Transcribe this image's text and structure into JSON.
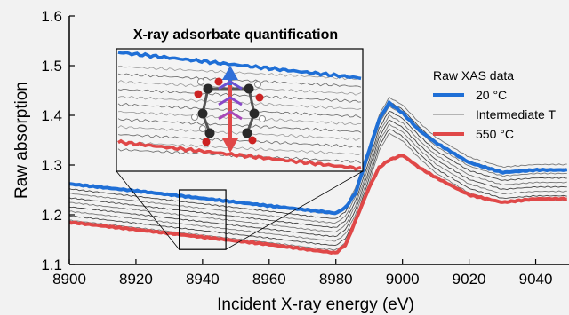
{
  "chart_data": {
    "type": "line",
    "xlabel": "Incident X-ray energy (eV)",
    "ylabel": "Raw absorption",
    "xlim": [
      8900,
      9050
    ],
    "ylim": [
      1.1,
      1.6
    ],
    "x_ticks": [
      8900,
      8920,
      8940,
      8960,
      8980,
      9000,
      9020,
      9040
    ],
    "y_ticks": [
      1.1,
      1.2,
      1.3,
      1.4,
      1.5,
      1.6
    ],
    "legend": {
      "title": "Raw XAS data",
      "placement": "right",
      "entries": [
        "20 °C",
        "Intermediate T",
        "550 °C"
      ]
    },
    "series": [
      {
        "name": "20 °C",
        "color": "#1f6fd6",
        "x": [
          8900,
          8920,
          8940,
          8960,
          8975,
          8980,
          8983,
          8986,
          8990,
          8993,
          8996,
          9000,
          9005,
          9010,
          9020,
          9030,
          9040,
          9050
        ],
        "y": [
          1.262,
          1.248,
          1.233,
          1.218,
          1.207,
          1.203,
          1.215,
          1.245,
          1.33,
          1.392,
          1.425,
          1.405,
          1.37,
          1.345,
          1.305,
          1.285,
          1.29,
          1.29
        ]
      },
      {
        "name": "Intermediate T",
        "color": "#555555",
        "x": [
          8900,
          8920,
          8940,
          8960,
          8975,
          8980,
          8983,
          8986,
          8990,
          8993,
          8996,
          9000,
          9005,
          9010,
          9020,
          9030,
          9040,
          9050
        ],
        "y": [
          1.225,
          1.21,
          1.195,
          1.18,
          1.168,
          1.165,
          1.18,
          1.22,
          1.3,
          1.365,
          1.4,
          1.385,
          1.35,
          1.32,
          1.28,
          1.26,
          1.265,
          1.265
        ],
        "variants": 9
      },
      {
        "name": "550 °C",
        "color": "#e04848",
        "x": [
          8900,
          8920,
          8940,
          8960,
          8975,
          8980,
          8983,
          8986,
          8990,
          8993,
          8996,
          9000,
          9005,
          9010,
          9020,
          9030,
          9040,
          9050
        ],
        "y": [
          1.185,
          1.17,
          1.155,
          1.14,
          1.127,
          1.123,
          1.14,
          1.19,
          1.255,
          1.295,
          1.31,
          1.32,
          1.295,
          1.275,
          1.24,
          1.225,
          1.232,
          1.232
        ]
      }
    ],
    "inset": {
      "title": "X-ray adsorbate quantification",
      "zoom_xlim": [
        8933,
        8947
      ],
      "zoom_ylim": [
        1.13,
        1.25
      ]
    }
  }
}
